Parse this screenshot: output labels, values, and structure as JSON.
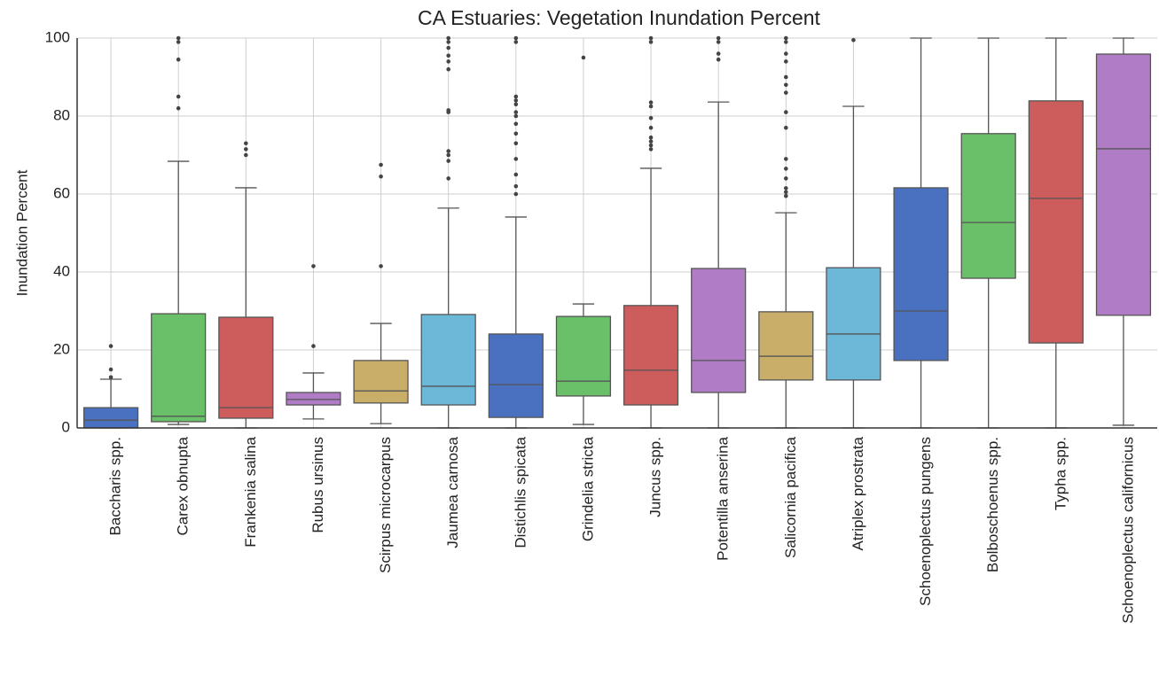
{
  "chart_data": {
    "type": "box",
    "title": "CA Estuaries: Vegetation Inundation Percent",
    "y_label": "Inundation Percent",
    "categories": [
      "Baccharis spp.",
      "Carex obnupta",
      "Frankenia salina",
      "Rubus ursinus",
      "Scirpus microcarpus",
      "Jaumea carnosa",
      "Distichlis spicata",
      "Grindelia stricta",
      "Juncus spp.",
      "Potentilla anserina",
      "Salicornia pacifica",
      "Atriplex prostrata",
      "Schoenoplectus pungens",
      "Bolboschoenus spp.",
      "Typha spp.",
      "Schoenoplectus californicus"
    ],
    "boxes": [
      {
        "whislo": 0,
        "q1": 0,
        "med": 2,
        "q3": 5.2,
        "whishi": 12.5,
        "fliers": [
          13,
          15,
          21
        ],
        "color": "#4a70c0"
      },
      {
        "whislo": 0.9,
        "q1": 1.6,
        "med": 3,
        "q3": 29.3,
        "whishi": 68.4,
        "fliers": [
          82,
          85,
          94.5,
          99,
          100
        ],
        "color": "#6abf69"
      },
      {
        "whislo": 0,
        "q1": 2.5,
        "med": 5.2,
        "q3": 28.4,
        "whishi": 61.6,
        "fliers": [
          70,
          71.5,
          73
        ],
        "color": "#cd5c5c"
      },
      {
        "whislo": 2.3,
        "q1": 5.9,
        "med": 7.3,
        "q3": 9.1,
        "whishi": 14.1,
        "fliers": [
          21,
          41.5
        ],
        "color": "#b07cc6"
      },
      {
        "whislo": 1.1,
        "q1": 6.4,
        "med": 9.5,
        "q3": 17.3,
        "whishi": 26.8,
        "fliers": [
          41.5,
          64.5,
          67.5
        ],
        "color": "#c9ae6a"
      },
      {
        "whislo": 0,
        "q1": 5.9,
        "med": 10.7,
        "q3": 29.1,
        "whishi": 56.4,
        "fliers": [
          64,
          68.5,
          70,
          71,
          81,
          81.5,
          92,
          94,
          95.5,
          97.5,
          99,
          100
        ],
        "color": "#6cb8d8"
      },
      {
        "whislo": 0,
        "q1": 2.7,
        "med": 11.1,
        "q3": 24.1,
        "whishi": 54.1,
        "fliers": [
          60,
          62,
          65,
          69,
          73,
          75.5,
          78,
          80,
          81,
          83,
          84,
          85,
          99,
          100
        ],
        "color": "#4a70c0"
      },
      {
        "whislo": 0.9,
        "q1": 8.2,
        "med": 12,
        "q3": 28.6,
        "whishi": 31.8,
        "fliers": [
          95
        ],
        "color": "#6abf69"
      },
      {
        "whislo": 0,
        "q1": 5.9,
        "med": 14.8,
        "q3": 31.4,
        "whishi": 66.6,
        "fliers": [
          71.5,
          72.5,
          73.5,
          74.5,
          77,
          79.5,
          82.5,
          83.5,
          99,
          100
        ],
        "color": "#cd5c5c"
      },
      {
        "whislo": 0,
        "q1": 9.1,
        "med": 17.3,
        "q3": 40.9,
        "whishi": 83.6,
        "fliers": [
          94.5,
          96,
          99,
          100
        ],
        "color": "#b07cc6"
      },
      {
        "whislo": 0,
        "q1": 12.3,
        "med": 18.4,
        "q3": 29.8,
        "whishi": 55.2,
        "fliers": [
          59.5,
          60.5,
          61.5,
          64,
          66.5,
          69,
          77,
          81,
          86,
          88,
          90,
          94,
          96,
          99,
          100
        ],
        "color": "#c9ae6a"
      },
      {
        "whislo": 0,
        "q1": 12.3,
        "med": 24.1,
        "q3": 41.1,
        "whishi": 82.5,
        "fliers": [
          99.5
        ],
        "color": "#6cb8d8"
      },
      {
        "whislo": 0,
        "q1": 17.3,
        "med": 30,
        "q3": 61.6,
        "whishi": 100,
        "fliers": [],
        "color": "#4a70c0"
      },
      {
        "whislo": 0,
        "q1": 38.4,
        "med": 52.7,
        "q3": 75.5,
        "whishi": 100,
        "fliers": [],
        "color": "#6abf69"
      },
      {
        "whislo": 0,
        "q1": 21.8,
        "med": 58.9,
        "q3": 83.9,
        "whishi": 100,
        "fliers": [],
        "color": "#cd5c5c"
      },
      {
        "whislo": 0.7,
        "q1": 28.9,
        "med": 71.6,
        "q3": 95.9,
        "whishi": 100,
        "fliers": [],
        "color": "#b07cc6"
      }
    ],
    "ylim": [
      0,
      100
    ],
    "yticks": [
      0,
      20,
      40,
      60,
      80,
      100
    ],
    "grid": true
  }
}
